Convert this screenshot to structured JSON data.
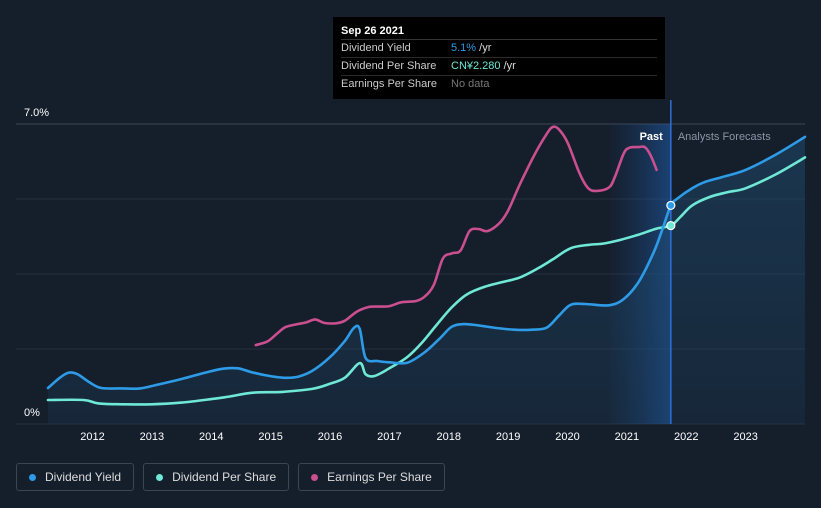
{
  "tooltip": {
    "date": "Sep 26 2021",
    "rows": [
      {
        "label": "Dividend Yield",
        "value": "5.1%",
        "suffix": " /yr"
      },
      {
        "label": "Dividend Per Share",
        "value": "CN¥2.280",
        "suffix": " /yr"
      },
      {
        "label": "Earnings Per Share",
        "value": "No data",
        "suffix": ""
      }
    ]
  },
  "legend": [
    {
      "label": "Dividend Yield",
      "color": "#2e9be6"
    },
    {
      "label": "Dividend Per Share",
      "color": "#6fe8d6"
    },
    {
      "label": "Earnings Per Share",
      "color": "#c94f8f"
    }
  ],
  "chart_data": {
    "type": "line",
    "y_top_label": "7.0%",
    "y_bottom_label": "0%",
    "ylim": [
      0,
      7
    ],
    "xlim": [
      2011.25,
      2024.0
    ],
    "x_ticks": [
      "2012",
      "2013",
      "2014",
      "2015",
      "2016",
      "2017",
      "2018",
      "2019",
      "2020",
      "2021",
      "2022",
      "2023"
    ],
    "past_label": "Past",
    "forecast_label": "Analysts Forecasts",
    "past_end": 2021.74,
    "forecast_shade_start": 2020.72,
    "series": [
      {
        "name": "Dividend Yield",
        "color": "#2e9be6",
        "points": [
          [
            2011.25,
            0.84
          ],
          [
            2011.45,
            1.08
          ],
          [
            2011.6,
            1.2
          ],
          [
            2011.75,
            1.16
          ],
          [
            2011.95,
            0.97
          ],
          [
            2012.15,
            0.84
          ],
          [
            2012.5,
            0.83
          ],
          [
            2012.8,
            0.83
          ],
          [
            2013.1,
            0.92
          ],
          [
            2013.5,
            1.05
          ],
          [
            2013.9,
            1.2
          ],
          [
            2014.2,
            1.29
          ],
          [
            2014.45,
            1.3
          ],
          [
            2014.65,
            1.22
          ],
          [
            2014.9,
            1.14
          ],
          [
            2015.2,
            1.08
          ],
          [
            2015.45,
            1.1
          ],
          [
            2015.7,
            1.24
          ],
          [
            2016.0,
            1.56
          ],
          [
            2016.25,
            1.94
          ],
          [
            2016.4,
            2.24
          ],
          [
            2016.5,
            2.22
          ],
          [
            2016.6,
            1.54
          ],
          [
            2016.8,
            1.47
          ],
          [
            2017.0,
            1.44
          ],
          [
            2017.3,
            1.43
          ],
          [
            2017.6,
            1.68
          ],
          [
            2017.85,
            2.0
          ],
          [
            2018.05,
            2.27
          ],
          [
            2018.25,
            2.33
          ],
          [
            2018.5,
            2.3
          ],
          [
            2018.8,
            2.24
          ],
          [
            2019.1,
            2.2
          ],
          [
            2019.4,
            2.2
          ],
          [
            2019.65,
            2.25
          ],
          [
            2019.85,
            2.52
          ],
          [
            2020.05,
            2.78
          ],
          [
            2020.3,
            2.8
          ],
          [
            2020.7,
            2.77
          ],
          [
            2020.95,
            2.92
          ],
          [
            2021.2,
            3.32
          ],
          [
            2021.45,
            4.0
          ],
          [
            2021.6,
            4.55
          ],
          [
            2021.74,
            5.1
          ],
          [
            2021.85,
            5.26
          ],
          [
            2022.1,
            5.5
          ],
          [
            2022.3,
            5.64
          ],
          [
            2022.6,
            5.76
          ],
          [
            2023.0,
            5.93
          ],
          [
            2023.5,
            6.28
          ],
          [
            2024.0,
            6.7
          ]
        ]
      },
      {
        "name": "Dividend Per Share",
        "color": "#6fe8d6",
        "points": [
          [
            2011.25,
            0.56
          ],
          [
            2011.85,
            0.56
          ],
          [
            2012.1,
            0.48
          ],
          [
            2012.5,
            0.46
          ],
          [
            2013.0,
            0.46
          ],
          [
            2013.5,
            0.5
          ],
          [
            2014.0,
            0.58
          ],
          [
            2014.3,
            0.64
          ],
          [
            2014.7,
            0.73
          ],
          [
            2015.2,
            0.75
          ],
          [
            2015.7,
            0.82
          ],
          [
            2016.0,
            0.94
          ],
          [
            2016.25,
            1.08
          ],
          [
            2016.5,
            1.42
          ],
          [
            2016.6,
            1.16
          ],
          [
            2016.75,
            1.12
          ],
          [
            2017.0,
            1.3
          ],
          [
            2017.3,
            1.56
          ],
          [
            2017.55,
            1.9
          ],
          [
            2017.8,
            2.32
          ],
          [
            2018.05,
            2.72
          ],
          [
            2018.3,
            3.02
          ],
          [
            2018.6,
            3.2
          ],
          [
            2018.9,
            3.31
          ],
          [
            2019.2,
            3.42
          ],
          [
            2019.5,
            3.63
          ],
          [
            2019.75,
            3.84
          ],
          [
            2020.05,
            4.1
          ],
          [
            2020.35,
            4.18
          ],
          [
            2020.6,
            4.21
          ],
          [
            2020.9,
            4.3
          ],
          [
            2021.2,
            4.42
          ],
          [
            2021.5,
            4.56
          ],
          [
            2021.74,
            4.63
          ],
          [
            2021.9,
            4.83
          ],
          [
            2022.1,
            5.1
          ],
          [
            2022.4,
            5.3
          ],
          [
            2022.7,
            5.41
          ],
          [
            2023.0,
            5.5
          ],
          [
            2023.5,
            5.82
          ],
          [
            2024.0,
            6.22
          ]
        ]
      },
      {
        "name": "Earnings Per Share",
        "color": "#c94f8f",
        "points": [
          [
            2014.75,
            1.84
          ],
          [
            2014.95,
            1.93
          ],
          [
            2015.1,
            2.1
          ],
          [
            2015.25,
            2.26
          ],
          [
            2015.45,
            2.33
          ],
          [
            2015.6,
            2.37
          ],
          [
            2015.75,
            2.44
          ],
          [
            2015.9,
            2.36
          ],
          [
            2016.1,
            2.35
          ],
          [
            2016.25,
            2.41
          ],
          [
            2016.45,
            2.62
          ],
          [
            2016.65,
            2.73
          ],
          [
            2016.8,
            2.74
          ],
          [
            2017.0,
            2.75
          ],
          [
            2017.2,
            2.84
          ],
          [
            2017.45,
            2.87
          ],
          [
            2017.6,
            2.98
          ],
          [
            2017.75,
            3.25
          ],
          [
            2017.9,
            3.86
          ],
          [
            2018.05,
            3.98
          ],
          [
            2018.2,
            4.05
          ],
          [
            2018.35,
            4.5
          ],
          [
            2018.5,
            4.55
          ],
          [
            2018.65,
            4.5
          ],
          [
            2018.85,
            4.68
          ],
          [
            2019.0,
            4.98
          ],
          [
            2019.2,
            5.6
          ],
          [
            2019.45,
            6.3
          ],
          [
            2019.65,
            6.77
          ],
          [
            2019.75,
            6.93
          ],
          [
            2019.85,
            6.88
          ],
          [
            2020.0,
            6.57
          ],
          [
            2020.2,
            5.86
          ],
          [
            2020.35,
            5.5
          ],
          [
            2020.5,
            5.44
          ],
          [
            2020.7,
            5.52
          ],
          [
            2020.8,
            5.77
          ],
          [
            2020.95,
            6.32
          ],
          [
            2021.05,
            6.45
          ],
          [
            2021.2,
            6.46
          ],
          [
            2021.3,
            6.46
          ],
          [
            2021.4,
            6.27
          ],
          [
            2021.5,
            5.93
          ]
        ]
      }
    ],
    "markers": [
      {
        "series": "Dividend Yield",
        "x": 2021.74,
        "y": 5.1
      },
      {
        "series": "Dividend Per Share",
        "x": 2021.74,
        "y": 4.63
      }
    ]
  }
}
